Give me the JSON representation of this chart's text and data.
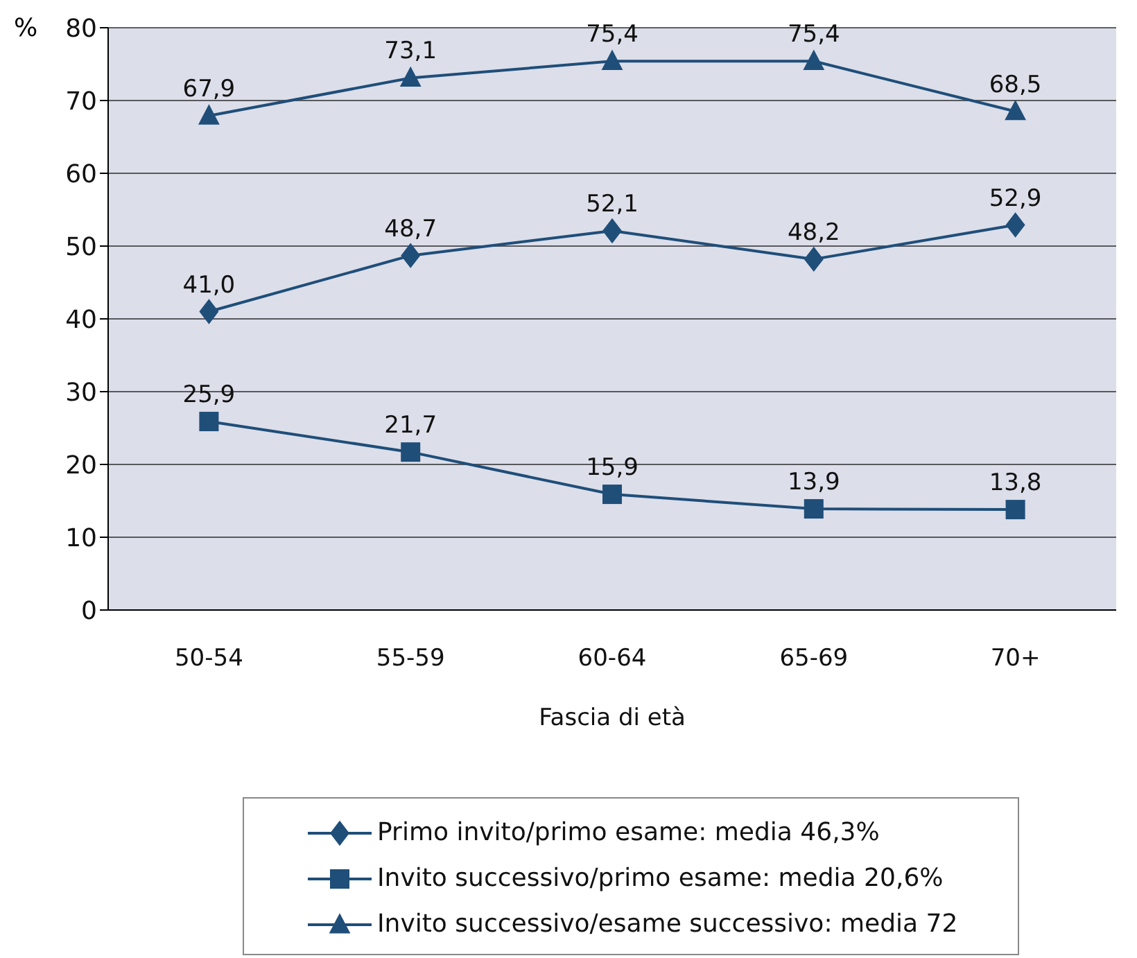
{
  "chart_data": {
    "type": "line",
    "xlabel": "Fascia di età",
    "ylabel": "%",
    "categories": [
      "50-54",
      "55-59",
      "60-64",
      "65-69",
      "70+"
    ],
    "series": [
      {
        "name": "Primo invito/primo esame: media 46,3%",
        "color": "#1f4e79",
        "marker": "diamond",
        "values": [
          41.0,
          48.7,
          52.1,
          48.2,
          52.9
        ],
        "value_labels": [
          "41,0",
          "48,7",
          "52,1",
          "48,2",
          "52,9"
        ]
      },
      {
        "name": "Invito successivo/primo esame: media 20,6%",
        "color": "#1f4e79",
        "marker": "square",
        "values": [
          25.9,
          21.7,
          15.9,
          13.9,
          13.8
        ],
        "value_labels": [
          "25,9",
          "21,7",
          "15,9",
          "13,9",
          "13,8"
        ]
      },
      {
        "name": "Invito successivo/esame successivo: media 72",
        "color": "#1f4e79",
        "marker": "triangle",
        "values": [
          67.9,
          73.1,
          75.4,
          75.4,
          68.5
        ],
        "value_labels": [
          "67,9",
          "73,1",
          "75,4",
          "75,4",
          "68,5"
        ]
      }
    ],
    "ylim": [
      0,
      80
    ],
    "yticks": [
      0,
      10,
      20,
      30,
      40,
      50,
      60,
      70,
      80
    ],
    "grid": "y",
    "legend": "bottom"
  }
}
